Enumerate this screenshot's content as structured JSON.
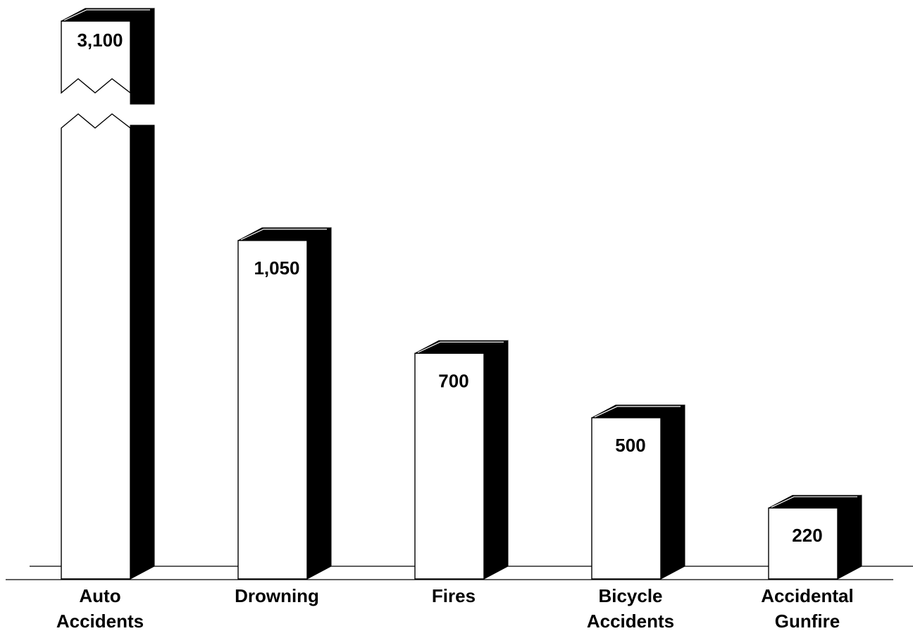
{
  "chart_data": {
    "type": "bar",
    "style": "3d-column",
    "categories": [
      [
        "Auto",
        "Accidents"
      ],
      [
        "Drowning"
      ],
      [
        "Fires"
      ],
      [
        "Bicycle",
        "Accidents"
      ],
      [
        "Accidental",
        "Gunfire"
      ]
    ],
    "values": [
      3100,
      1050,
      700,
      500,
      220
    ],
    "value_labels": [
      "3,100",
      "1,050",
      "700",
      "500",
      "220"
    ],
    "axis_break": {
      "category_index": 0
    },
    "ylim": [
      0,
      1200
    ],
    "title": "",
    "xlabel": "",
    "ylabel": "",
    "grid": false,
    "legend": "none",
    "colors": {
      "face": "#ffffff",
      "side": "#000000",
      "stroke": "#000000"
    }
  }
}
